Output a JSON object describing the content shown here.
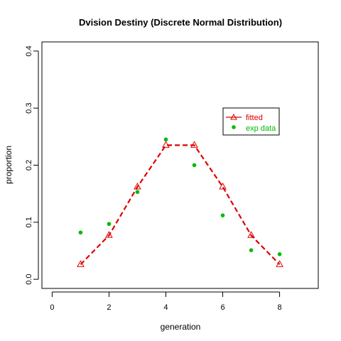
{
  "chart_data": {
    "type": "scatter",
    "title": "Dvision Destiny (Discrete Normal Distribution)",
    "xlabel": "generation",
    "ylabel": "proportion",
    "xlim": [
      -0.36,
      9.36
    ],
    "ylim": [
      -0.016,
      0.416
    ],
    "xticks": [
      0,
      2,
      4,
      6,
      8
    ],
    "yticks": [
      0.0,
      0.1,
      0.2,
      0.3,
      0.4
    ],
    "xtick_labels": [
      "0",
      "2",
      "4",
      "6",
      "8"
    ],
    "ytick_labels": [
      "0.0",
      "0.1",
      "0.2",
      "0.3",
      "0.4"
    ],
    "grid": false,
    "legend": {
      "position": "top-right"
    },
    "series": [
      {
        "name": "fitted",
        "style": "dashed line with open triangles",
        "color": "#dd0000",
        "x": [
          1,
          2,
          3,
          4,
          5,
          6,
          7,
          8
        ],
        "y": [
          0.026,
          0.077,
          0.162,
          0.235,
          0.235,
          0.162,
          0.077,
          0.026
        ]
      },
      {
        "name": "exp data",
        "style": "filled circles",
        "color": "#00bb00",
        "x": [
          1,
          2,
          3,
          4,
          5,
          6,
          7,
          8
        ],
        "y": [
          0.082,
          0.097,
          0.153,
          0.245,
          0.2,
          0.112,
          0.051,
          0.044
        ]
      }
    ]
  }
}
